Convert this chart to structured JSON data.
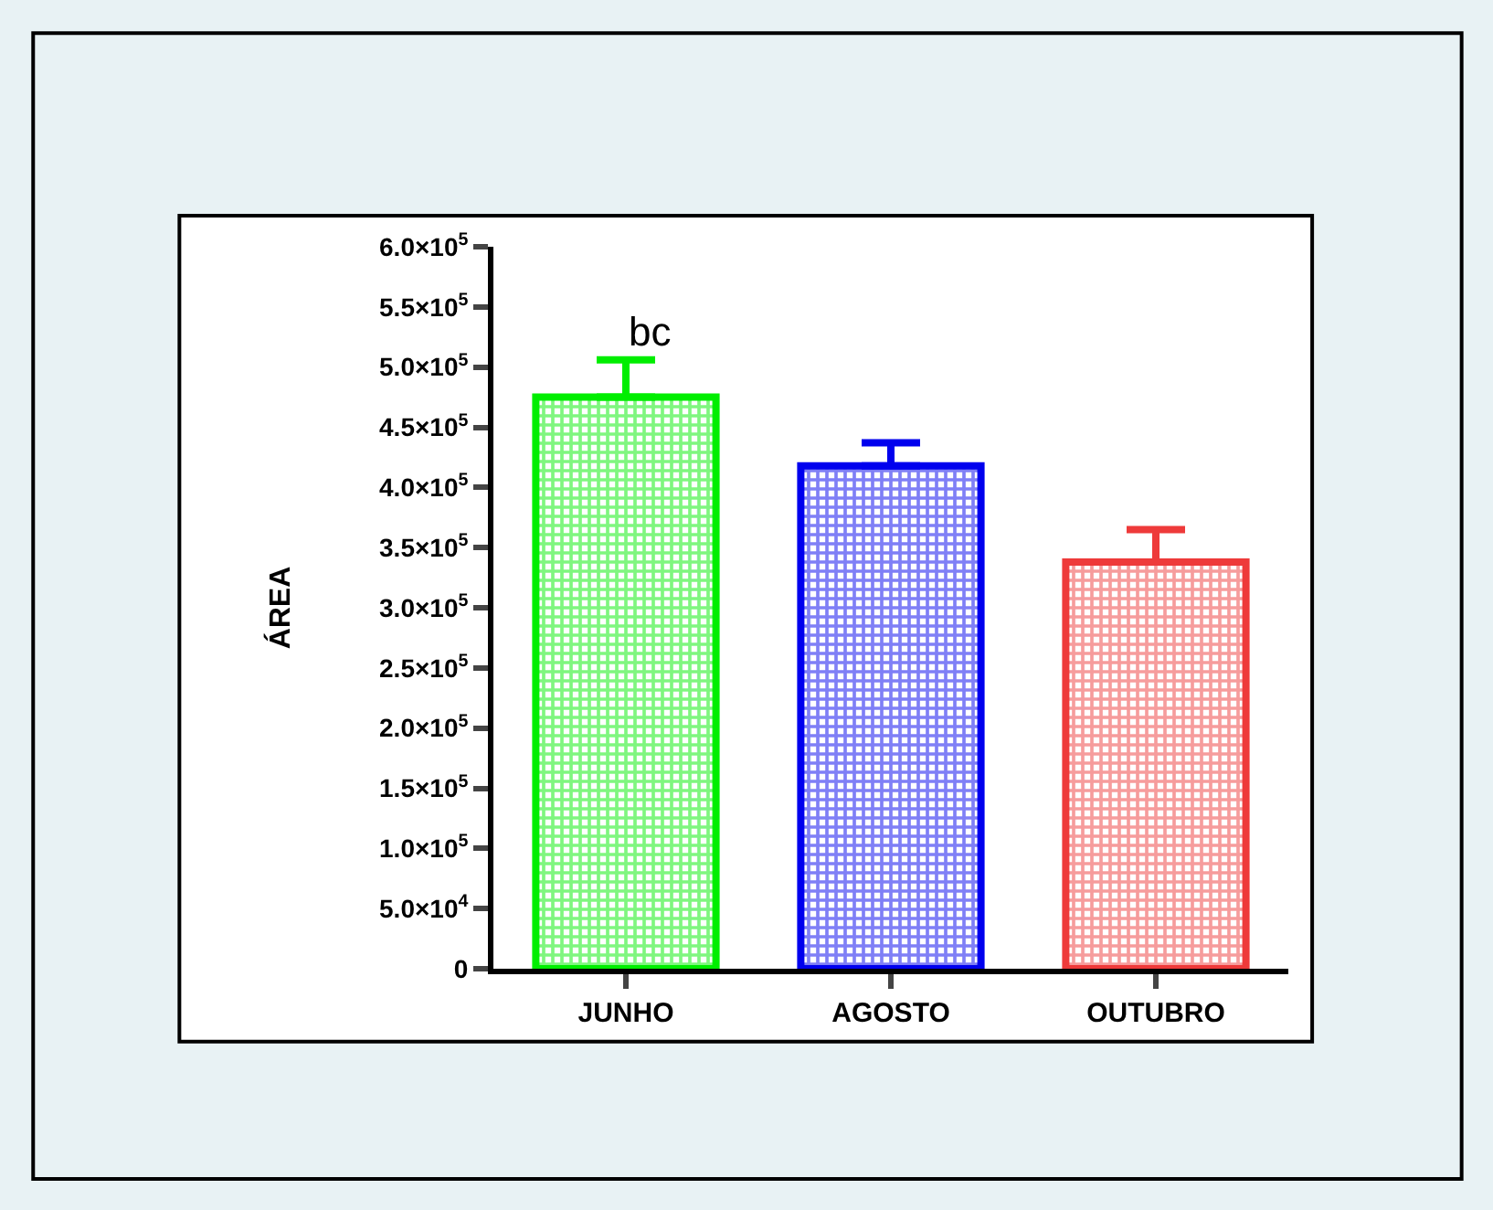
{
  "chart_data": {
    "type": "bar",
    "ylabel": "ÁREA",
    "categories": [
      "JUNHO",
      "AGOSTO",
      "OUTUBRO"
    ],
    "values": [
      475000,
      418000,
      338000
    ],
    "colors": [
      "#00ee00",
      "#0000ee",
      "#ee3a3a"
    ],
    "errors": [
      [
        475000,
        506000
      ],
      [
        418000,
        437000
      ],
      [
        338000,
        365000
      ]
    ],
    "ylim": [
      0,
      600000
    ],
    "yticks": [
      0,
      {
        "value": 50000,
        "label": "5.0×10$^{4}$"
      },
      {
        "value": 100000,
        "label": "1.0×10$^{5}$"
      },
      {
        "value": 150000,
        "label": "1.5×10$^{5}$"
      },
      {
        "value": 200000,
        "label": "2.0×10$^{5}$"
      },
      {
        "value": 250000,
        "label": "2.5×10$^{5}$"
      },
      {
        "value": 300000,
        "label": "3.0×10$^{5}$"
      },
      {
        "value": 350000,
        "label": "3.5×10$^{5}$"
      },
      {
        "value": 400000,
        "label": "4.0×10$^{5}$"
      },
      {
        "value": 450000,
        "label": "4.5×10$^{5}$"
      },
      {
        "value": 500000,
        "label": "5.0×10$^{5}$"
      },
      {
        "value": 550000,
        "label": "5.5×10$^{5}$"
      },
      {
        "value": 600000,
        "label": "6.0×10$^{5}$"
      }
    ],
    "annotations": [
      "bc"
    ]
  }
}
